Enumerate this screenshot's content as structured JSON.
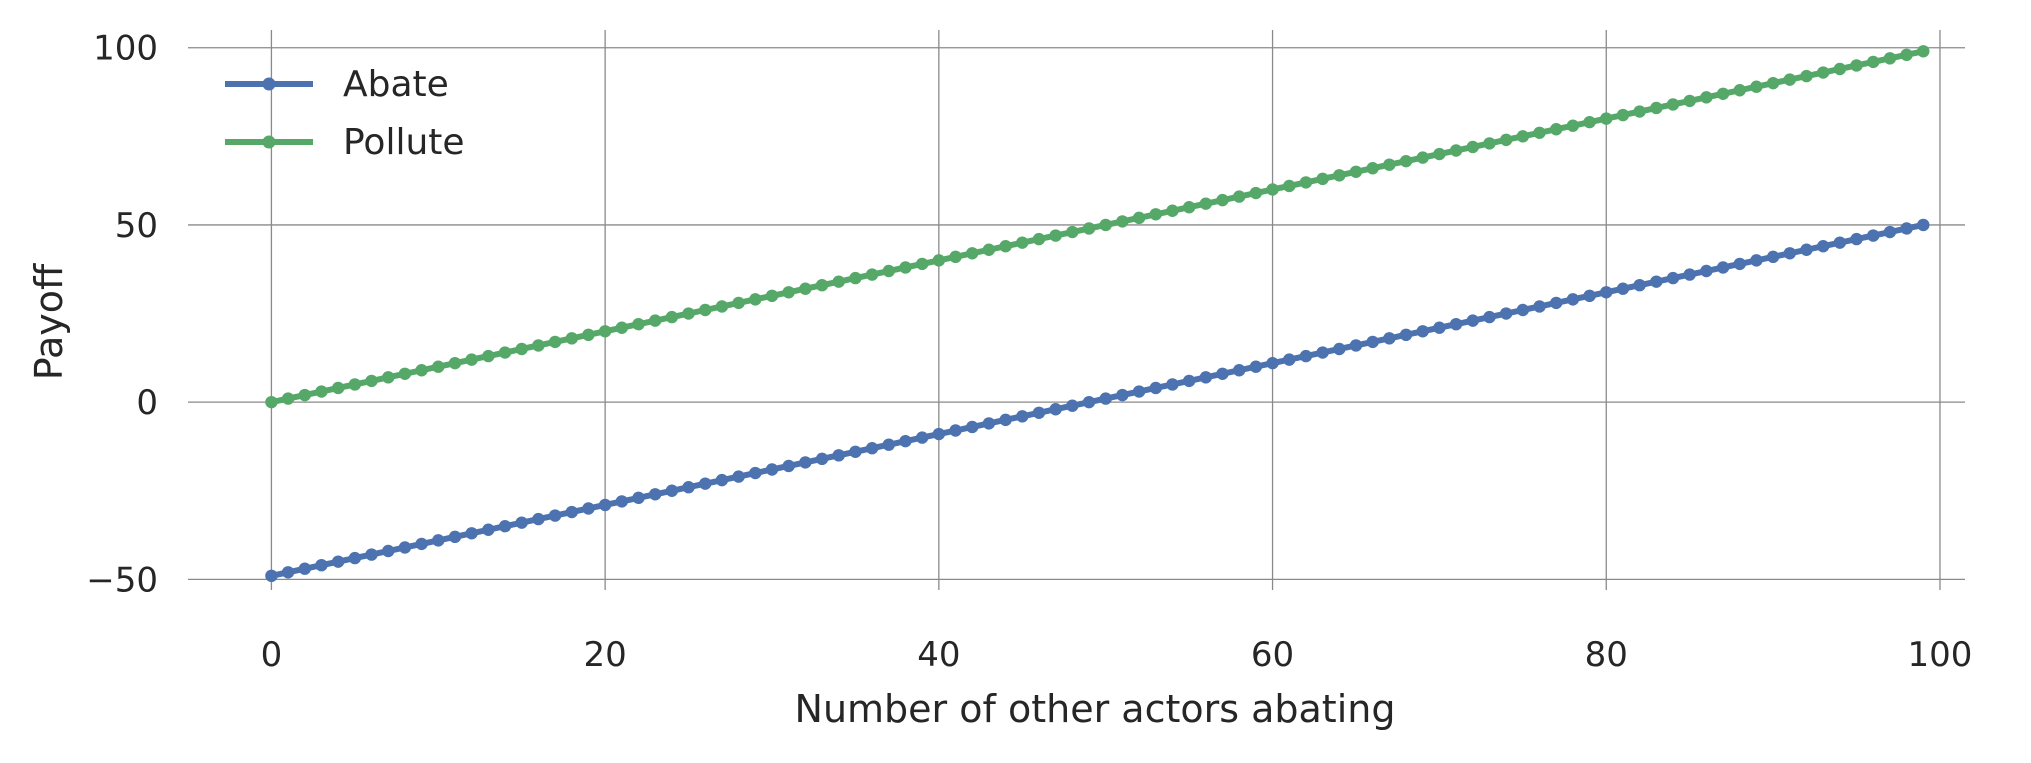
{
  "chart_data": {
    "type": "line",
    "xlabel": "Number of other actors abating",
    "ylabel": "Payoff",
    "xlim": [
      -5,
      101.5
    ],
    "ylim": [
      -53,
      105
    ],
    "xticks": [
      0,
      20,
      40,
      60,
      80,
      100
    ],
    "yticks": [
      -50,
      0,
      50,
      100
    ],
    "xtick_labels": [
      "0",
      "20",
      "40",
      "60",
      "80",
      "100"
    ],
    "ytick_labels": [
      "−50",
      "0",
      "50",
      "100"
    ],
    "grid": true,
    "legend_position": "top-left",
    "x": {
      "start": 0,
      "end": 99,
      "step": 1
    },
    "series": [
      {
        "name": "Abate",
        "color": "#4c72b0",
        "intercept": -49,
        "slope": 1,
        "marker": "circle"
      },
      {
        "name": "Pollute",
        "color": "#55a868",
        "intercept": 0,
        "slope": 1,
        "marker": "circle"
      }
    ]
  }
}
